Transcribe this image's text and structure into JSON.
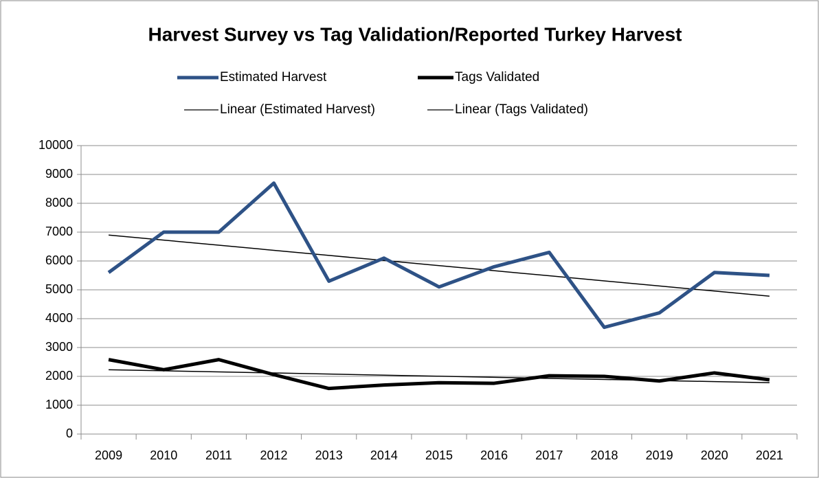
{
  "chart_data": {
    "type": "line",
    "title": "Harvest Survey vs Tag Validation/Reported Turkey Harvest",
    "categories": [
      "2009",
      "2010",
      "2011",
      "2012",
      "2013",
      "2014",
      "2015",
      "2016",
      "2017",
      "2018",
      "2019",
      "2020",
      "2021"
    ],
    "series": [
      {
        "name": "Estimated Harvest",
        "color": "#2e5286",
        "values": [
          5600,
          7000,
          7000,
          8700,
          5300,
          6100,
          5100,
          5800,
          6300,
          3700,
          4200,
          5600,
          5500
        ]
      },
      {
        "name": "Tags Validated",
        "color": "#000000",
        "values": [
          2580,
          2230,
          2580,
          2060,
          1580,
          1700,
          1780,
          1760,
          2020,
          2000,
          1840,
          2120,
          1880
        ]
      },
      {
        "name": "Linear (Estimated Harvest)",
        "color": "#000000",
        "values": [
          6900,
          6723,
          6547,
          6370,
          6193,
          6017,
          5840,
          5663,
          5487,
          5310,
          5133,
          4957,
          4780
        ]
      },
      {
        "name": "Linear (Tags Validated)",
        "color": "#000000",
        "values": [
          2230,
          2193,
          2155,
          2118,
          2080,
          2043,
          2005,
          1968,
          1930,
          1893,
          1855,
          1818,
          1780
        ]
      }
    ],
    "ylim": [
      0,
      10000
    ],
    "yticks": [
      0,
      1000,
      2000,
      3000,
      4000,
      5000,
      6000,
      7000,
      8000,
      9000,
      10000
    ],
    "grid": true
  }
}
